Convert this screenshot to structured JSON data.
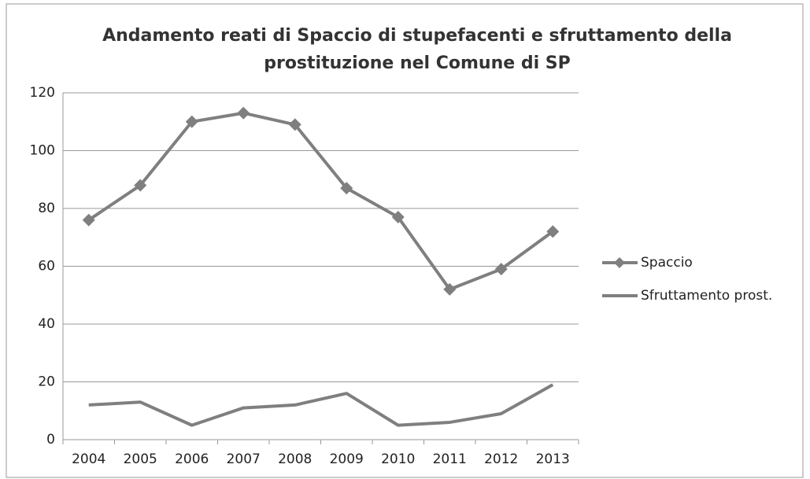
{
  "chart_data": {
    "type": "line",
    "title": "Andamento reati di Spaccio di stupefacenti e sfruttamento della prostituzione nel Comune di SP",
    "categories": [
      "2004",
      "2005",
      "2006",
      "2007",
      "2008",
      "2009",
      "2010",
      "2011",
      "2012",
      "2013"
    ],
    "series": [
      {
        "name": "Spaccio",
        "color": "#7f7f7f",
        "marker": "diamond",
        "values": [
          76,
          88,
          110,
          113,
          109,
          87,
          77,
          52,
          59,
          72
        ]
      },
      {
        "name": "Sfruttamento prost.",
        "color": "#7f7f7f",
        "values": [
          12,
          13,
          5,
          11,
          12,
          16,
          5,
          6,
          9,
          19
        ]
      }
    ],
    "ylim": [
      0,
      120
    ],
    "yticks": [
      0,
      20,
      40,
      60,
      80,
      100,
      120
    ],
    "grid": true,
    "legend": "right"
  }
}
